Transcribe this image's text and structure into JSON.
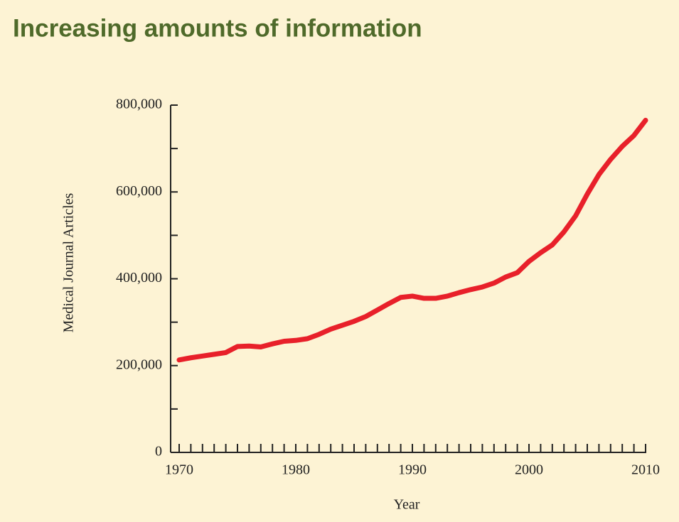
{
  "chart_data": {
    "type": "line",
    "title": "Increasing amounts of information",
    "x_label": "Year",
    "y_label": "Medical Journal Articles",
    "x": [
      1970,
      1971,
      1972,
      1973,
      1974,
      1975,
      1976,
      1977,
      1978,
      1979,
      1980,
      1981,
      1982,
      1983,
      1984,
      1985,
      1986,
      1987,
      1988,
      1989,
      1990,
      1991,
      1992,
      1993,
      1994,
      1995,
      1996,
      1997,
      1998,
      1999,
      2000,
      2001,
      2002,
      2003,
      2004,
      2005,
      2006,
      2007,
      2008,
      2009,
      2010
    ],
    "series": [
      {
        "name": "Medical Journal Articles",
        "color": "#e8202a",
        "values": [
          213000,
          218000,
          222000,
          226000,
          230000,
          244000,
          245000,
          243000,
          250000,
          256000,
          258000,
          262000,
          272000,
          284000,
          293000,
          302000,
          313000,
          328000,
          343000,
          357000,
          360000,
          355000,
          355000,
          360000,
          368000,
          375000,
          381000,
          390000,
          404000,
          414000,
          440000,
          460000,
          478000,
          508000,
          545000,
          595000,
          640000,
          675000,
          705000,
          730000,
          765000
        ]
      }
    ],
    "xlim": [
      1970,
      2010
    ],
    "xticks": [
      1970,
      1980,
      1990,
      2000,
      2010
    ],
    "xticks_minor": [
      1971,
      1972,
      1973,
      1974,
      1975,
      1976,
      1977,
      1978,
      1979,
      1981,
      1982,
      1983,
      1984,
      1985,
      1986,
      1987,
      1988,
      1989,
      1991,
      1992,
      1993,
      1994,
      1995,
      1996,
      1997,
      1998,
      1999,
      2001,
      2002,
      2003,
      2004,
      2005,
      2006,
      2007,
      2008,
      2009
    ],
    "ylim": [
      0,
      800000
    ],
    "yticks": [
      0,
      {
        "value": 200000,
        "label": "200,000"
      },
      {
        "value": 400000,
        "label": "400,000"
      },
      {
        "value": 600000,
        "label": "600,000"
      },
      {
        "value": 800000,
        "label": "800,000"
      }
    ],
    "yticks_minor": [
      100000,
      300000,
      500000,
      700000
    ]
  }
}
